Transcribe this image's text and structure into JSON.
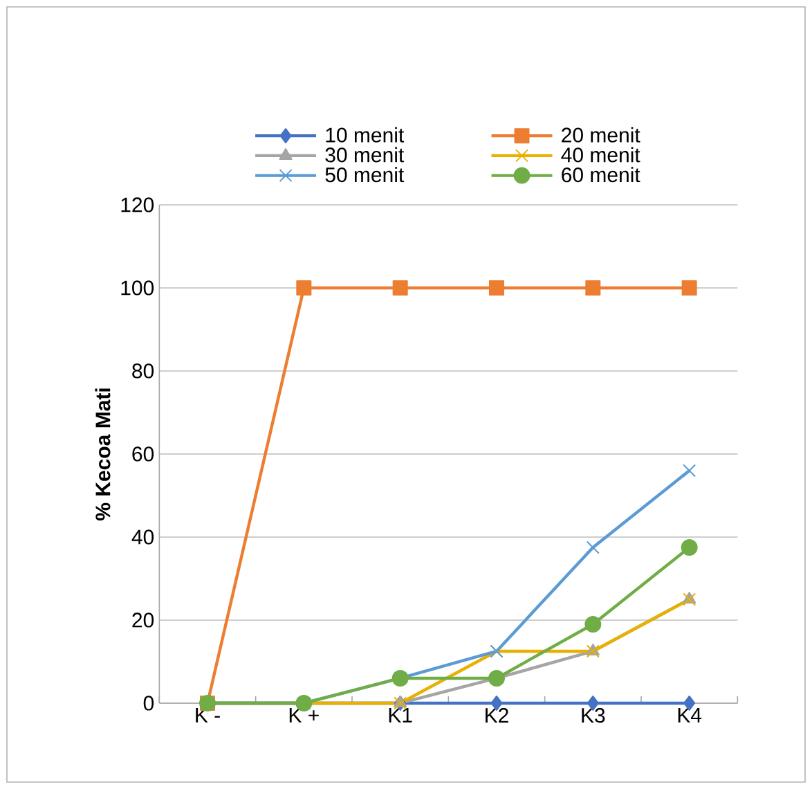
{
  "chart_data": {
    "type": "line",
    "ylabel": "% Kecoa Mati",
    "categories": [
      "K -",
      "K +",
      "K1",
      "K2",
      "K3",
      "K4"
    ],
    "series": [
      {
        "name": "10 menit",
        "color": "#4472c4",
        "marker": "diamond",
        "values": [
          0,
          0,
          0,
          0,
          0,
          0
        ]
      },
      {
        "name": "20 menit",
        "color": "#ed7d31",
        "marker": "square",
        "values": [
          0,
          100,
          100,
          100,
          100,
          100
        ]
      },
      {
        "name": "30 menit",
        "color": "#a5a5a5",
        "marker": "triangle",
        "values": [
          0,
          0,
          0,
          6,
          12.5,
          25
        ]
      },
      {
        "name": "40 menit",
        "color": "#e8b000",
        "marker": "cross",
        "values": [
          0,
          0,
          0,
          12.5,
          12.5,
          25
        ]
      },
      {
        "name": "50 menit",
        "color": "#5b9bd5",
        "marker": "cross",
        "values": [
          0,
          0,
          6,
          12.5,
          37.5,
          56
        ]
      },
      {
        "name": "60 menit",
        "color": "#70ad47",
        "marker": "circle",
        "values": [
          0,
          0,
          6,
          6,
          19,
          37.5
        ]
      }
    ],
    "ylim": [
      0,
      120
    ],
    "yticks": [
      0,
      20,
      40,
      60,
      80,
      100,
      120
    ],
    "grid": "y",
    "legend": "top",
    "line_style": "solid"
  }
}
